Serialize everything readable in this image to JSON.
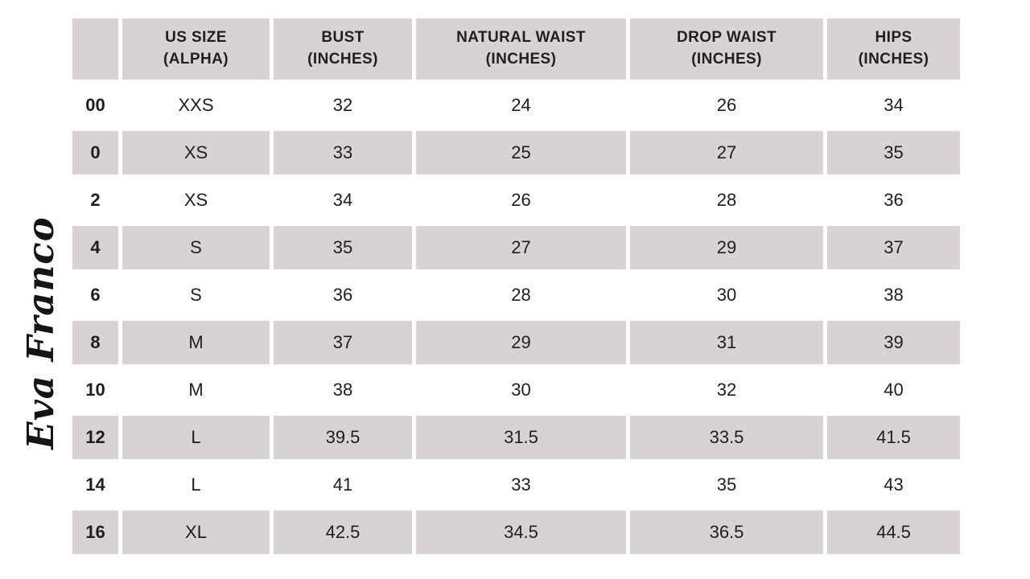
{
  "brand": {
    "logo_text": "Eva Franco"
  },
  "colors": {
    "stripe": "#d8d3d2",
    "text": "#1e1e1e",
    "background": "#ffffff"
  },
  "table": {
    "headers": [
      {
        "line1": "US SIZE",
        "line2": "(ALPHA)"
      },
      {
        "line1": "BUST",
        "line2": "(INCHES)"
      },
      {
        "line1": "NATURAL WAIST",
        "line2": "(INCHES)"
      },
      {
        "line1": "DROP WAIST",
        "line2": "(INCHES)"
      },
      {
        "line1": "HIPS",
        "line2": "(INCHES)"
      }
    ],
    "rows": [
      {
        "us_size": "00",
        "alpha": "XXS",
        "bust": "32",
        "natural_waist": "24",
        "drop_waist": "26",
        "hips": "34"
      },
      {
        "us_size": "0",
        "alpha": "XS",
        "bust": "33",
        "natural_waist": "25",
        "drop_waist": "27",
        "hips": "35"
      },
      {
        "us_size": "2",
        "alpha": "XS",
        "bust": "34",
        "natural_waist": "26",
        "drop_waist": "28",
        "hips": "36"
      },
      {
        "us_size": "4",
        "alpha": "S",
        "bust": "35",
        "natural_waist": "27",
        "drop_waist": "29",
        "hips": "37"
      },
      {
        "us_size": "6",
        "alpha": "S",
        "bust": "36",
        "natural_waist": "28",
        "drop_waist": "30",
        "hips": "38"
      },
      {
        "us_size": "8",
        "alpha": "M",
        "bust": "37",
        "natural_waist": "29",
        "drop_waist": "31",
        "hips": "39"
      },
      {
        "us_size": "10",
        "alpha": "M",
        "bust": "38",
        "natural_waist": "30",
        "drop_waist": "32",
        "hips": "40"
      },
      {
        "us_size": "12",
        "alpha": "L",
        "bust": "39.5",
        "natural_waist": "31.5",
        "drop_waist": "33.5",
        "hips": "41.5"
      },
      {
        "us_size": "14",
        "alpha": "L",
        "bust": "41",
        "natural_waist": "33",
        "drop_waist": "35",
        "hips": "43"
      },
      {
        "us_size": "16",
        "alpha": "XL",
        "bust": "42.5",
        "natural_waist": "34.5",
        "drop_waist": "36.5",
        "hips": "44.5"
      }
    ]
  },
  "chart_data": {
    "type": "table",
    "columns": [
      "US SIZE",
      "US SIZE (ALPHA)",
      "BUST (INCHES)",
      "NATURAL WAIST (INCHES)",
      "DROP WAIST (INCHES)",
      "HIPS (INCHES)"
    ],
    "rows": [
      [
        "00",
        "XXS",
        32,
        24,
        26,
        34
      ],
      [
        "0",
        "XS",
        33,
        25,
        27,
        35
      ],
      [
        "2",
        "XS",
        34,
        26,
        28,
        36
      ],
      [
        "4",
        "S",
        35,
        27,
        29,
        37
      ],
      [
        "6",
        "S",
        36,
        28,
        30,
        38
      ],
      [
        "8",
        "M",
        37,
        29,
        31,
        39
      ],
      [
        "10",
        "M",
        38,
        30,
        32,
        40
      ],
      [
        "12",
        "L",
        39.5,
        31.5,
        33.5,
        41.5
      ],
      [
        "14",
        "L",
        41,
        33,
        35,
        43
      ],
      [
        "16",
        "XL",
        42.5,
        34.5,
        36.5,
        44.5
      ]
    ]
  }
}
